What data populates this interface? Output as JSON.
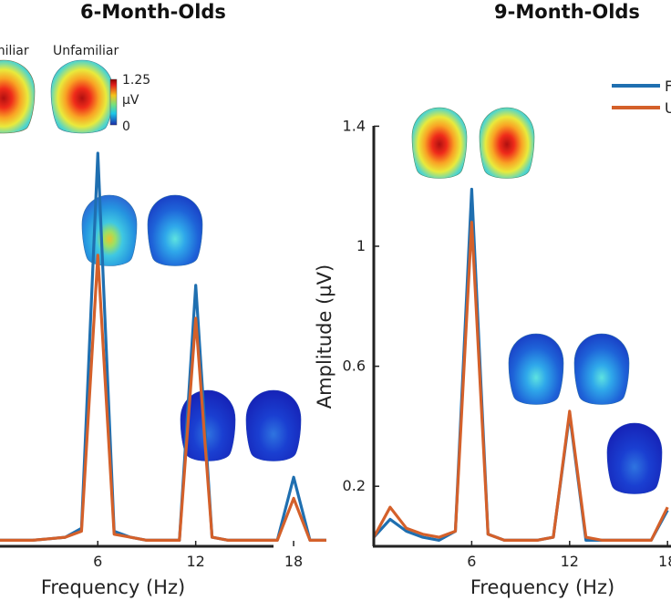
{
  "chart_data": [
    {
      "type": "line",
      "title": "6-Month-Olds",
      "xlabel": "Frequency (Hz)",
      "ylabel": "Amplitude (µV)",
      "xlim": [
        0,
        20
      ],
      "ylim": [
        0,
        1.4
      ],
      "xticks": [
        6,
        12,
        18
      ],
      "xtick_labels": [
        "6",
        "12",
        "18"
      ],
      "x": [
        0,
        1,
        2,
        3,
        4,
        5,
        6,
        7,
        8,
        9,
        10,
        11,
        12,
        13,
        14,
        15,
        16,
        17,
        18,
        19,
        20
      ],
      "series": [
        {
          "name": "Familiar",
          "color": "#1f6fb0",
          "values": [
            0.02,
            0.02,
            0.02,
            0.025,
            0.03,
            0.06,
            1.31,
            0.05,
            0.03,
            0.02,
            0.02,
            0.02,
            0.87,
            0.03,
            0.02,
            0.02,
            0.02,
            0.02,
            0.23,
            0.02,
            0.02
          ]
        },
        {
          "name": "Unfamiliar",
          "color": "#d4602a",
          "values": [
            0.02,
            0.02,
            0.02,
            0.025,
            0.03,
            0.05,
            0.97,
            0.04,
            0.03,
            0.02,
            0.02,
            0.02,
            0.76,
            0.03,
            0.02,
            0.02,
            0.02,
            0.02,
            0.16,
            0.02,
            0.02
          ]
        }
      ],
      "topomap_labels": [
        "miliar",
        "Unfamiliar"
      ],
      "colorbar": {
        "max_label": "1.25",
        "unit_label": "µV",
        "min_label": "0"
      }
    },
    {
      "type": "line",
      "title": "9-Month-Olds",
      "xlabel": "Frequency (Hz)",
      "ylabel": "Amplitude (µV)",
      "xlim": [
        0,
        18
      ],
      "ylim": [
        0,
        1.4
      ],
      "yticks": [
        0.2,
        0.6,
        1,
        1.4
      ],
      "ytick_labels": [
        "0.2",
        "0.6",
        "1",
        "1.4"
      ],
      "xticks": [
        6,
        12,
        18
      ],
      "xtick_labels": [
        "6",
        "12",
        "18"
      ],
      "x": [
        0,
        1,
        2,
        3,
        4,
        5,
        6,
        7,
        8,
        9,
        10,
        11,
        12,
        13,
        14,
        15,
        16,
        17,
        18
      ],
      "series": [
        {
          "name": "Familiar",
          "color": "#1f6fb0",
          "values": [
            0.03,
            0.09,
            0.05,
            0.03,
            0.02,
            0.05,
            1.19,
            0.04,
            0.02,
            0.02,
            0.02,
            0.03,
            0.44,
            0.02,
            0.02,
            0.02,
            0.02,
            0.02,
            0.12
          ]
        },
        {
          "name": "Unfamiliar",
          "color": "#d4602a",
          "values": [
            0.03,
            0.13,
            0.06,
            0.04,
            0.03,
            0.05,
            1.08,
            0.04,
            0.02,
            0.02,
            0.02,
            0.03,
            0.45,
            0.03,
            0.02,
            0.02,
            0.02,
            0.02,
            0.13
          ]
        }
      ],
      "legend": {
        "placement": "top-right",
        "entries": [
          "F",
          "U"
        ]
      }
    }
  ]
}
